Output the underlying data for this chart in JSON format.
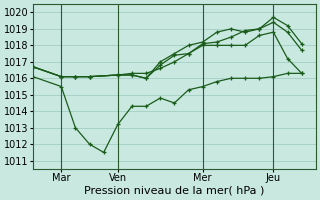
{
  "title": "Pression niveau de la mer( hPa )",
  "ylabel_values": [
    1011,
    1012,
    1013,
    1014,
    1015,
    1016,
    1017,
    1018,
    1019,
    1020
  ],
  "ylim": [
    1010.5,
    1020.5
  ],
  "xlim": [
    0,
    10.0
  ],
  "xtick_positions": [
    1.0,
    3.0,
    6.0,
    8.5
  ],
  "xtick_labels": [
    "Mar",
    "Ven",
    "Mer",
    "Jeu"
  ],
  "vline_positions": [
    1.0,
    3.0,
    6.0,
    8.5
  ],
  "background_color": "#c8e8e0",
  "grid_color": "#9dc8be",
  "line_color": "#1a5c1a",
  "lines": [
    {
      "x": [
        0.0,
        1.0,
        1.5,
        2.0,
        3.0,
        3.5,
        4.0,
        4.5,
        5.0,
        5.5,
        6.0,
        6.5,
        7.0,
        7.5,
        8.0,
        8.5,
        9.0,
        9.5
      ],
      "y": [
        1016.7,
        1016.1,
        1016.1,
        1016.1,
        1016.2,
        1016.2,
        1016.0,
        1016.8,
        1017.4,
        1017.5,
        1018.1,
        1018.2,
        1018.5,
        1018.9,
        1019.0,
        1019.7,
        1019.2,
        1018.1
      ]
    },
    {
      "x": [
        0.0,
        1.0,
        1.5,
        2.0,
        3.0,
        3.5,
        4.0,
        4.5,
        5.0,
        5.5,
        6.0,
        6.5,
        7.0,
        7.5,
        8.0,
        8.5,
        9.0,
        9.5
      ],
      "y": [
        1016.7,
        1016.1,
        1016.1,
        1016.1,
        1016.2,
        1016.2,
        1016.0,
        1017.0,
        1017.5,
        1018.0,
        1018.2,
        1018.8,
        1019.0,
        1018.8,
        1019.0,
        1019.4,
        1018.8,
        1017.7
      ]
    },
    {
      "x": [
        0.0,
        1.0,
        1.5,
        2.0,
        3.0,
        3.5,
        4.0,
        4.5,
        5.0,
        5.5,
        6.0,
        6.5,
        7.0,
        7.5,
        8.0,
        8.5,
        9.0,
        9.5
      ],
      "y": [
        1016.7,
        1016.1,
        1016.1,
        1016.1,
        1016.2,
        1016.3,
        1016.3,
        1016.6,
        1017.0,
        1017.5,
        1018.0,
        1018.0,
        1018.0,
        1018.0,
        1018.6,
        1018.8,
        1017.2,
        1016.3
      ]
    },
    {
      "x": [
        0.0,
        1.0,
        1.5,
        2.0,
        2.5,
        3.0,
        3.5,
        4.0,
        4.5,
        5.0,
        5.5,
        6.0,
        6.5,
        7.0,
        7.5,
        8.0,
        8.5,
        9.0,
        9.5
      ],
      "y": [
        1016.1,
        1015.5,
        1013.0,
        1012.0,
        1011.5,
        1013.2,
        1014.3,
        1014.3,
        1014.8,
        1014.5,
        1015.3,
        1015.5,
        1015.8,
        1016.0,
        1016.0,
        1016.0,
        1016.1,
        1016.3,
        1016.3
      ]
    }
  ]
}
